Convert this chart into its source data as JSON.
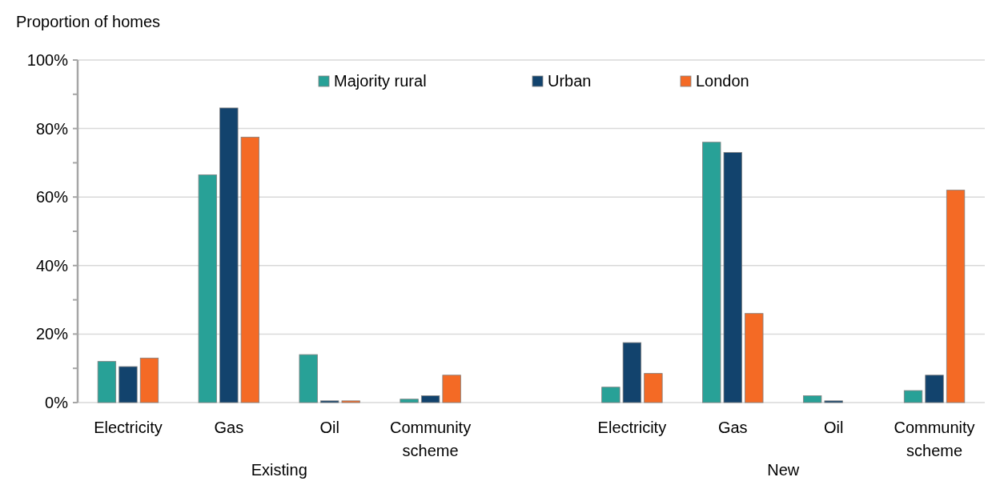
{
  "chart_data": {
    "type": "bar",
    "ylabel": "Proportion of homes",
    "categories": [
      "Electricity",
      "Gas",
      "Oil",
      "Community scheme",
      null,
      "Electricity",
      "Gas",
      "Oil",
      "Community scheme"
    ],
    "series": [
      {
        "name": "Majority rural",
        "color": "#28a197",
        "values": [
          12,
          66.5,
          14,
          1,
          null,
          4.5,
          76,
          2,
          3.5
        ]
      },
      {
        "name": "Urban",
        "color": "#12436d",
        "values": [
          10.5,
          86,
          0.5,
          2,
          null,
          17.5,
          73,
          0.5,
          8
        ]
      },
      {
        "name": "London",
        "color": "#f46a25",
        "values": [
          13,
          77.5,
          0.5,
          8,
          null,
          8.5,
          26,
          0,
          62
        ]
      }
    ],
    "ylim": [
      0,
      100
    ],
    "yticks": [
      {
        "value": 0,
        "label": "0%"
      },
      {
        "value": 10,
        "label": null
      },
      {
        "value": 20,
        "label": "20%"
      },
      {
        "value": 30,
        "label": null
      },
      {
        "value": 40,
        "label": "40%"
      },
      {
        "value": 50,
        "label": null
      },
      {
        "value": 60,
        "label": "60%"
      },
      {
        "value": 70,
        "label": null
      },
      {
        "value": 80,
        "label": "80%"
      },
      {
        "value": 90,
        "label": null
      },
      {
        "value": 100,
        "label": "100%"
      }
    ],
    "grid": "y",
    "legend": "top",
    "annotations": [
      "Existing",
      "New"
    ]
  }
}
